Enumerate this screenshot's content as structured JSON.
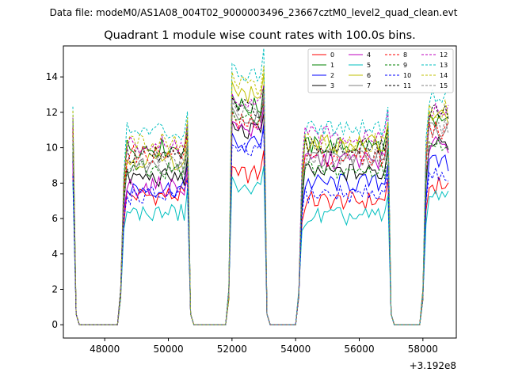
{
  "suptitle": "Data file: modeM0/AS1A08_004T02_9000003496_23667cztM0_level2_quad_clean.evt",
  "chart_data": {
    "type": "line",
    "title": "Quadrant 1 module wise count rates with 100.0s bins.",
    "xlabel": "",
    "ylabel": "",
    "x_offset_label": "+3.192e8",
    "xlim": [
      46700,
      59050
    ],
    "ylim": [
      -0.75,
      15.75
    ],
    "xticks": [
      48000,
      50000,
      52000,
      54000,
      56000,
      58000
    ],
    "xtick_labels": [
      "48000",
      "50000",
      "52000",
      "54000",
      "56000",
      "58000"
    ],
    "yticks": [
      0,
      2,
      4,
      6,
      8,
      10,
      12,
      14
    ],
    "ytick_labels": [
      "0",
      "2",
      "4",
      "6",
      "8",
      "10",
      "12",
      "14"
    ],
    "legend_position": "top-right",
    "segments": [
      {
        "spike": [
          47000,
          47100
        ],
        "start": 48500,
        "end": 50600
      },
      {
        "spike": [
          50600,
          50700
        ],
        "start": 51900,
        "end": 53000
      },
      {
        "spike": null,
        "start": 54100,
        "end": 56900
      },
      {
        "spike": [
          56800,
          56900
        ],
        "start": 58000,
        "end": 58800
      }
    ],
    "series": [
      {
        "name": "0",
        "color": "#ff0000",
        "dash": "solid",
        "levels": [
          7.3,
          8.5,
          7.0,
          7.9
        ]
      },
      {
        "name": "1",
        "color": "#008000",
        "dash": "solid",
        "levels": [
          10.0,
          12.3,
          10.1,
          11.5
        ]
      },
      {
        "name": "2",
        "color": "#0000ff",
        "dash": "solid",
        "levels": [
          7.7,
          10.2,
          8.0,
          9.1
        ]
      },
      {
        "name": "3",
        "color": "#000000",
        "dash": "solid",
        "levels": [
          8.3,
          10.9,
          8.6,
          10.2
        ]
      },
      {
        "name": "4",
        "color": "#bf00bf",
        "dash": "solid",
        "levels": [
          7.8,
          11.0,
          9.3,
          10.2
        ]
      },
      {
        "name": "5",
        "color": "#00bfbf",
        "dash": "solid",
        "levels": [
          6.3,
          7.6,
          6.1,
          7.1
        ]
      },
      {
        "name": "6",
        "color": "#bfbf00",
        "dash": "solid",
        "levels": [
          9.3,
          13.0,
          10.2,
          11.6
        ]
      },
      {
        "name": "7",
        "color": "#808080",
        "dash": "solid",
        "levels": [
          9.0,
          11.7,
          9.4,
          11.0
        ]
      },
      {
        "name": "8",
        "color": "#ff0000",
        "dash": "dashed",
        "levels": [
          9.6,
          11.4,
          9.5,
          11.0
        ]
      },
      {
        "name": "9",
        "color": "#008000",
        "dash": "dashed",
        "levels": [
          8.7,
          11.6,
          8.7,
          10.2
        ]
      },
      {
        "name": "10",
        "color": "#0000ff",
        "dash": "dashed",
        "levels": [
          7.3,
          9.8,
          7.4,
          8.4
        ]
      },
      {
        "name": "11",
        "color": "#000000",
        "dash": "dashed",
        "levels": [
          9.6,
          12.2,
          10.0,
          11.9
        ]
      },
      {
        "name": "12",
        "color": "#bf00bf",
        "dash": "dashed",
        "levels": [
          10.1,
          12.4,
          10.7,
          12.2
        ]
      },
      {
        "name": "13",
        "color": "#00bfbf",
        "dash": "dashed",
        "levels": [
          10.9,
          14.2,
          11.2,
          12.9
        ]
      },
      {
        "name": "14",
        "color": "#bfbf00",
        "dash": "dashed",
        "levels": [
          10.3,
          13.5,
          10.3,
          12.2
        ]
      },
      {
        "name": "15",
        "color": "#808080",
        "dash": "dashed",
        "levels": [
          9.2,
          12.1,
          9.5,
          11.2
        ]
      }
    ]
  }
}
